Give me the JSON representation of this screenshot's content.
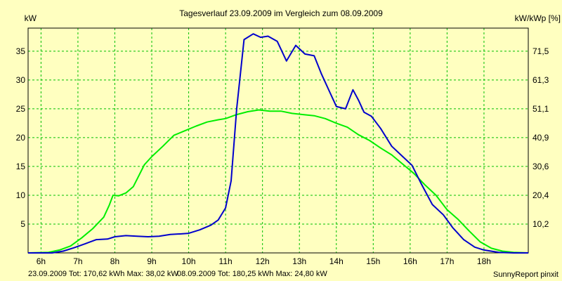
{
  "chart_data": {
    "type": "line",
    "title": "Tagesverlauf 23.09.2009 im Vergleich zum 08.09.2009",
    "ylabel_left": "kW",
    "ylabel_right": "kW/kWp [%]",
    "x_ticks": [
      "6h",
      "7h",
      "8h",
      "9h",
      "10h",
      "11h",
      "12h",
      "13h",
      "14h",
      "15h",
      "16h",
      "17h",
      "18h"
    ],
    "x_tick_hours": [
      6,
      7,
      8,
      9,
      10,
      11,
      12,
      13,
      14,
      15,
      16,
      17,
      18
    ],
    "xlim": [
      5.65,
      19.2
    ],
    "ylim": [
      0,
      39
    ],
    "y_ticks": [
      5,
      10,
      15,
      20,
      25,
      30,
      35
    ],
    "y_ticks_right": [
      "10,2",
      "20,4",
      "30,6",
      "40,9",
      "51,1",
      "61,3",
      "71,5"
    ],
    "grid": true,
    "background_color": "#ffffc0",
    "grid_color": "#00c000",
    "series": [
      {
        "name": "23.09.2009",
        "color": "#0000cc",
        "x": [
          5.65,
          6.3,
          6.6,
          6.9,
          7.2,
          7.5,
          7.8,
          8.0,
          8.3,
          8.6,
          8.9,
          9.2,
          9.5,
          9.8,
          10.0,
          10.3,
          10.6,
          10.8,
          11.0,
          11.15,
          11.3,
          11.5,
          11.75,
          11.95,
          12.15,
          12.4,
          12.65,
          12.9,
          13.15,
          13.4,
          13.6,
          14.0,
          14.25,
          14.45,
          14.6,
          14.75,
          14.95,
          15.2,
          15.5,
          15.75,
          16.05,
          16.3,
          16.6,
          16.9,
          17.15,
          17.45,
          17.75,
          18.0,
          18.4,
          18.8,
          19.2
        ],
        "y": [
          0,
          0,
          0.3,
          0.9,
          1.6,
          2.3,
          2.4,
          2.8,
          3.0,
          2.9,
          2.8,
          2.9,
          3.2,
          3.3,
          3.4,
          4.0,
          4.8,
          5.7,
          7.8,
          12.5,
          25,
          37,
          38.0,
          37.4,
          37.6,
          36.7,
          33.3,
          36.0,
          34.5,
          34.2,
          31,
          25.4,
          25.0,
          28.3,
          26.5,
          24.4,
          23.7,
          21.6,
          18.5,
          17.0,
          15.2,
          12.0,
          8.4,
          6.6,
          4.4,
          2.3,
          1.0,
          0.5,
          0.1,
          0,
          0
        ]
      },
      {
        "name": "08.09.2009",
        "color": "#00ee00",
        "x": [
          5.65,
          6.2,
          6.5,
          6.8,
          7.1,
          7.4,
          7.7,
          7.85,
          7.95,
          8.1,
          8.3,
          8.5,
          8.8,
          9.0,
          9.3,
          9.6,
          9.9,
          10.2,
          10.5,
          10.8,
          11.0,
          11.3,
          11.6,
          11.9,
          12.2,
          12.5,
          12.8,
          13.1,
          13.4,
          13.7,
          14.0,
          14.3,
          14.6,
          14.9,
          15.2,
          15.5,
          15.8,
          16.1,
          16.4,
          16.7,
          17.0,
          17.3,
          17.6,
          17.9,
          18.2,
          18.5,
          18.8,
          19.2
        ],
        "y": [
          0,
          0.1,
          0.5,
          1.2,
          2.6,
          4.2,
          6.2,
          8.3,
          10.0,
          9.9,
          10.4,
          11.5,
          15.3,
          16.7,
          18.5,
          20.4,
          21.2,
          22.0,
          22.7,
          23.1,
          23.3,
          24.0,
          24.5,
          24.8,
          24.6,
          24.6,
          24.2,
          24.0,
          23.8,
          23.3,
          22.5,
          21.8,
          20.5,
          19.5,
          18.2,
          17.0,
          15.4,
          13.8,
          11.8,
          10.0,
          7.5,
          5.8,
          3.8,
          1.9,
          0.8,
          0.3,
          0.1,
          0
        ]
      }
    ]
  },
  "footer": {
    "series1_text": "23.09.2009 Tot: 170,62 kWh Max: 38,02 kW",
    "series2_text": "08.09.2009 Tot: 180,25 kWh Max: 24,80 kW",
    "brand": "SunnyReport pinxit"
  }
}
